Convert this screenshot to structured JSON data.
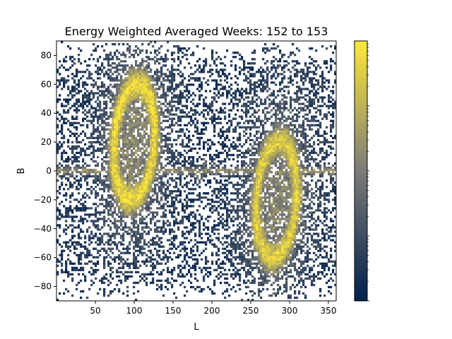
{
  "chart_data": {
    "type": "heatmap",
    "title": "Energy Weighted Averaged Weeks: 152 to 153",
    "xlabel": "L",
    "ylabel": "B",
    "xlim": [
      0,
      360
    ],
    "ylim": [
      -90,
      90
    ],
    "x_ticks": [
      50,
      100,
      150,
      200,
      250,
      300,
      350
    ],
    "y_ticks": [
      -80,
      -60,
      -40,
      -20,
      0,
      20,
      40,
      60,
      80
    ],
    "x_tick_labels": [
      "50",
      "100",
      "150",
      "200",
      "250",
      "300",
      "350"
    ],
    "y_tick_labels": [
      "−80",
      "−60",
      "−40",
      "−20",
      "0",
      "20",
      "40",
      "60",
      "80"
    ],
    "colormap": "cividis",
    "color_scale": "log",
    "colorbar_labels": "none",
    "colors": {
      "low": "#00204c",
      "mid": "#7c7b78",
      "high": "#fee838",
      "background": "#ffffff"
    },
    "features": [
      {
        "kind": "ring",
        "center": [
          100,
          20
        ],
        "radii": [
          32,
          50
        ],
        "tilt_deg": -10,
        "peak": 0.95
      },
      {
        "kind": "ring",
        "center": [
          283,
          -20
        ],
        "radii": [
          32,
          50
        ],
        "tilt_deg": -10,
        "peak": 0.9
      },
      {
        "kind": "band",
        "b": 0,
        "half_width": 3,
        "peak": 0.55
      },
      {
        "kind": "hotspot",
        "center": [
          263,
          -3
        ],
        "peak": 1.0
      },
      {
        "kind": "hotspot",
        "center": [
          183,
          -5
        ],
        "peak": 0.45
      },
      {
        "kind": "hotspot",
        "center": [
          190,
          5
        ],
        "peak": 0.4
      }
    ]
  }
}
